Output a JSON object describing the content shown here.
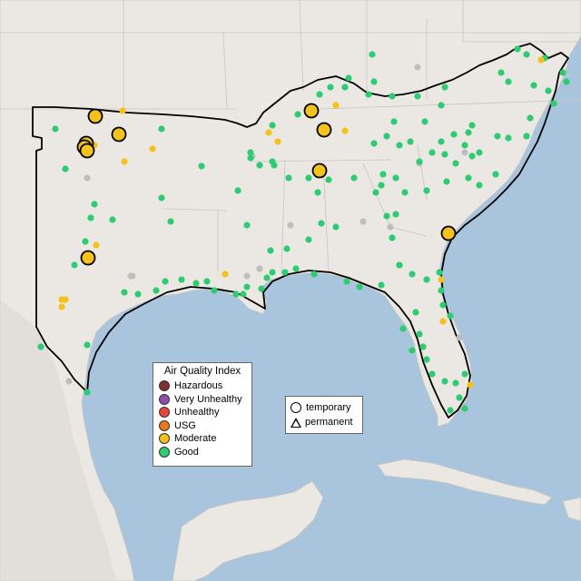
{
  "colors": {
    "water": "#a9c5de",
    "land": "#ebe8e4",
    "land_dark": "#dedad5",
    "border": "#c8c4bf",
    "region_outline": "#000000",
    "aqi": {
      "hazardous": "#7e2e2e",
      "very_unhealthy": "#8f4fa8",
      "unhealthy": "#e8443a",
      "usg": "#e87a1e",
      "moderate": "#f4c21b",
      "good": "#2ecc71",
      "no_data": "#bdbdbd"
    }
  },
  "aqi_legend": {
    "title": "Air Quality Index",
    "items": [
      {
        "label": "Hazardous",
        "color": "#7e2e2e"
      },
      {
        "label": "Very Unhealthy",
        "color": "#8f4fa8"
      },
      {
        "label": "Unhealthy",
        "color": "#e8443a"
      },
      {
        "label": "USG",
        "color": "#e87a1e"
      },
      {
        "label": "Moderate",
        "color": "#f4c21b"
      },
      {
        "label": "Good",
        "color": "#2ecc71"
      }
    ]
  },
  "shape_legend": {
    "items": [
      {
        "label": "temporary",
        "icon": "circle"
      },
      {
        "label": "permanent",
        "icon": "triangle"
      }
    ]
  }
}
